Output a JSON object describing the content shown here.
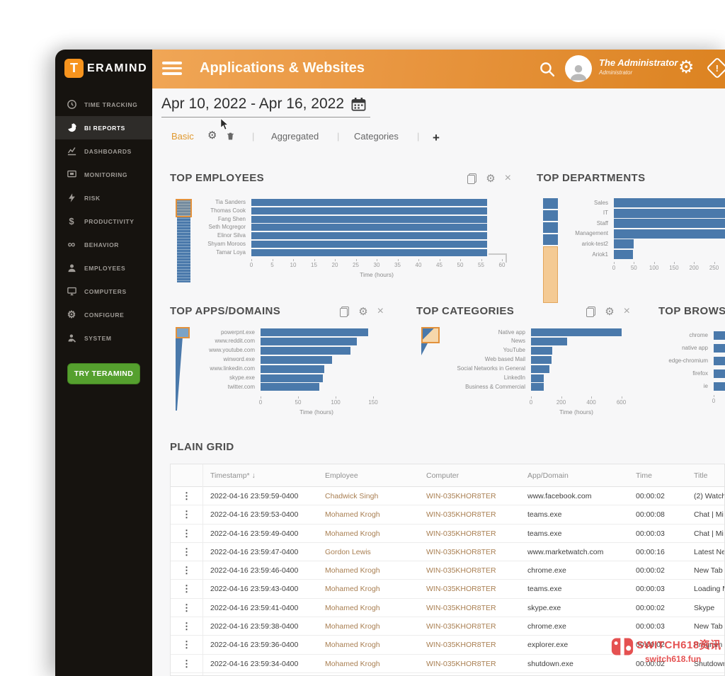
{
  "window": {
    "brand": {
      "logo_letter": "T",
      "logo_text": "ERAMIND"
    },
    "sidebar": {
      "items": [
        {
          "label": "TIME TRACKING",
          "icon": "clock-icon",
          "active": false
        },
        {
          "label": "BI REPORTS",
          "icon": "pie-chart-icon",
          "active": true
        },
        {
          "label": "DASHBOARDS",
          "icon": "dashboards-icon",
          "active": false
        },
        {
          "label": "MONITORING",
          "icon": "monitoring-icon",
          "active": false
        },
        {
          "label": "RISK",
          "icon": "lightning-icon",
          "active": false
        },
        {
          "label": "PRODUCTIVITY",
          "icon": "dollar-icon",
          "active": false
        },
        {
          "label": "BEHAVIOR",
          "icon": "infinity-icon",
          "active": false
        },
        {
          "label": "EMPLOYEES",
          "icon": "person-icon",
          "active": false
        },
        {
          "label": "COMPUTERS",
          "icon": "computer-icon",
          "active": false
        },
        {
          "label": "CONFIGURE",
          "icon": "gear-icon",
          "active": false
        },
        {
          "label": "SYSTEM",
          "icon": "system-user-icon",
          "active": false
        }
      ],
      "try_button_label": "TRY TERAMIND"
    },
    "topbar": {
      "title": "Applications & Websites",
      "user_name": "The Administrator",
      "user_role": "Administrator"
    },
    "toolbar": {
      "date_range": "Apr 10, 2022 - Apr 16, 2022",
      "separator": "|",
      "tabs": [
        {
          "label": "Basic",
          "active": true
        },
        {
          "label": "Aggregated",
          "active": false
        },
        {
          "label": "Categories",
          "active": false
        },
        {
          "label": "+",
          "active": false
        }
      ]
    },
    "grid": {
      "title": "PLAIN GRID",
      "columns": [
        "Timestamp* ↓",
        "Employee",
        "Computer",
        "App/Domain",
        "Time",
        "Title"
      ],
      "rows": [
        [
          "2022-04-16 23:59:59-0400",
          "Chadwick Singh",
          "WIN-035KHOR8TER",
          "www.facebook.com",
          "00:00:02",
          "(2) Watch"
        ],
        [
          "2022-04-16 23:59:53-0400",
          "Mohamed Krogh",
          "WIN-035KHOR8TER",
          "teams.exe",
          "00:00:08",
          "Chat | Mi"
        ],
        [
          "2022-04-16 23:59:49-0400",
          "Mohamed Krogh",
          "WIN-035KHOR8TER",
          "teams.exe",
          "00:00:03",
          "Chat | Mi"
        ],
        [
          "2022-04-16 23:59:47-0400",
          "Gordon Lewis",
          "WIN-035KHOR8TER",
          "www.marketwatch.com",
          "00:00:16",
          "Latest Ne"
        ],
        [
          "2022-04-16 23:59:46-0400",
          "Mohamed Krogh",
          "WIN-035KHOR8TER",
          "chrome.exe",
          "00:00:02",
          "New Tab -"
        ],
        [
          "2022-04-16 23:59:43-0400",
          "Mohamed Krogh",
          "WIN-035KHOR8TER",
          "teams.exe",
          "00:00:03",
          "Loading M"
        ],
        [
          "2022-04-16 23:59:41-0400",
          "Mohamed Krogh",
          "WIN-035KHOR8TER",
          "skype.exe",
          "00:00:02",
          "Skype"
        ],
        [
          "2022-04-16 23:59:38-0400",
          "Mohamed Krogh",
          "WIN-035KHOR8TER",
          "chrome.exe",
          "00:00:03",
          "New Tab -"
        ],
        [
          "2022-04-16 23:59:36-0400",
          "Mohamed Krogh",
          "WIN-035KHOR8TER",
          "explorer.exe",
          "00:00:02",
          "Program M"
        ],
        [
          "2022-04-16 23:59:34-0400",
          "Mohamed Krogh",
          "WIN-035KHOR8TER",
          "shutdown.exe",
          "00:00:02",
          "Shutdown"
        ]
      ]
    },
    "watermark": {
      "line1": "SWITCH618资讯",
      "line2": "switch618.fun"
    },
    "colors": {
      "accent_orange": "#e8923c",
      "bar_blue": "#4a79ab",
      "button_green": "#55a02e",
      "sidebar_bg": "#16130f",
      "watermark_red": "#e23a3a"
    }
  },
  "chart_data": [
    {
      "id": "top-employees",
      "type": "bar",
      "orientation": "horizontal",
      "title": "TOP EMPLOYEES",
      "categories": [
        "Tia Sanders",
        "Thomas Cook",
        "Fang Shen",
        "Seth Mcgregor",
        "Elinor Silva",
        "Shyam Moroos",
        "Tamar Loya"
      ],
      "values": [
        56.5,
        56.5,
        56.5,
        56.5,
        56.5,
        56.5,
        56.5
      ],
      "xlabel": "Time (hours)",
      "xlim": [
        0,
        60
      ],
      "xticks": [
        0,
        5,
        10,
        15,
        20,
        25,
        30,
        35,
        40,
        45,
        50,
        55,
        60
      ],
      "toolbar_icons": [
        "copy-icon",
        "gear-icon",
        "close-icon"
      ]
    },
    {
      "id": "top-departments",
      "type": "bar",
      "orientation": "horizontal",
      "title": "TOP DEPARTMENTS",
      "categories": [
        "Sales",
        "IT",
        "Staff",
        "Management",
        "ariok-test2",
        "Ariok1"
      ],
      "values": [
        null,
        null,
        null,
        null,
        50,
        48
      ],
      "clipped": [
        true,
        true,
        true,
        true,
        false,
        false
      ],
      "xlabel": "Time (hours)",
      "xticks": [
        0,
        50,
        100,
        150,
        200,
        250
      ]
    },
    {
      "id": "top-apps-domains",
      "type": "bar",
      "orientation": "horizontal",
      "title": "TOP APPS/DOMAINS",
      "categories": [
        "powerpnt.exe",
        "www.reddit.com",
        "www.youtube.com",
        "winword.exe",
        "www.linkedin.com",
        "skype.exe",
        "twitter.com"
      ],
      "values": [
        143,
        128,
        120,
        95,
        85,
        83,
        78
      ],
      "xlabel": "Time (hours)",
      "xlim": [
        0,
        150
      ],
      "xticks": [
        0,
        50,
        100,
        150
      ],
      "toolbar_icons": [
        "copy-icon",
        "gear-icon",
        "close-icon"
      ]
    },
    {
      "id": "top-categories",
      "type": "bar",
      "orientation": "horizontal",
      "title": "TOP CATEGORIES",
      "categories": [
        "Native app",
        "News",
        "YouTube",
        "Web based Mail",
        "Social Networks in General",
        "LinkedIn",
        "Business & Commercial"
      ],
      "values": [
        600,
        240,
        140,
        135,
        120,
        85,
        85
      ],
      "xlabel": "Time (hours)",
      "xlim": [
        0,
        600
      ],
      "xticks": [
        0,
        200,
        400,
        600
      ],
      "toolbar_icons": [
        "copy-icon",
        "gear-icon",
        "close-icon"
      ]
    },
    {
      "id": "top-browsers",
      "type": "bar",
      "orientation": "horizontal",
      "title": "TOP BROWSERS",
      "categories": [
        "chrome",
        "native app",
        "edge-chromium",
        "firefox",
        "ie"
      ],
      "values": [
        null,
        null,
        null,
        null,
        null
      ],
      "clipped": [
        true,
        true,
        true,
        true,
        true
      ],
      "xticks": [
        0
      ]
    }
  ]
}
